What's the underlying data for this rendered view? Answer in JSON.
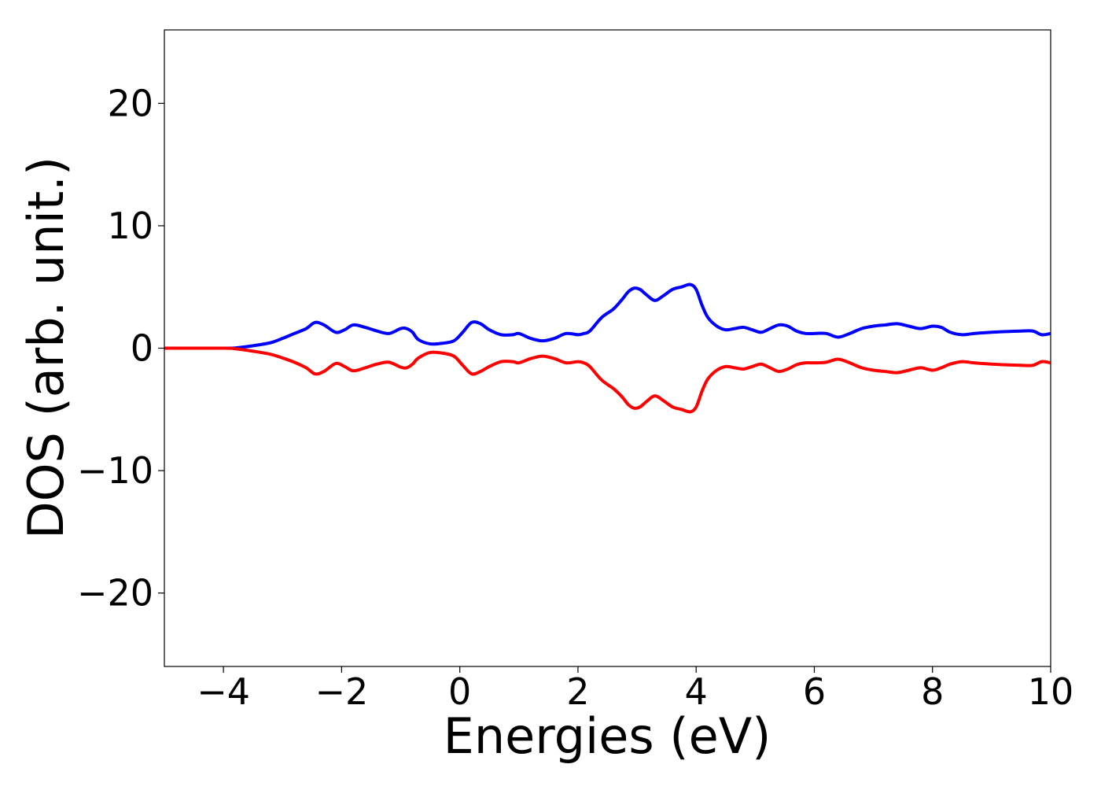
{
  "chart_data": {
    "type": "line",
    "title": "",
    "xlabel": "Energies (eV)",
    "ylabel": "DOS (arb. unit.)",
    "xlim": [
      -5,
      10
    ],
    "ylim": [
      -26,
      26
    ],
    "x_ticks": [
      -4,
      -2,
      0,
      2,
      4,
      6,
      8,
      10
    ],
    "x_tick_labels": [
      "−4",
      "−2",
      "0",
      "2",
      "4",
      "6",
      "8",
      "10"
    ],
    "y_ticks": [
      -20,
      -10,
      0,
      10,
      20
    ],
    "y_tick_labels": [
      "−20",
      "−10",
      "0",
      "10",
      "20"
    ],
    "grid": false,
    "legend": "none",
    "series": [
      {
        "color": "#0000ff",
        "x": [
          -5.0,
          -4.0,
          -3.8,
          -3.5,
          -3.2,
          -3.0,
          -2.8,
          -2.6,
          -2.45,
          -2.3,
          -2.1,
          -1.95,
          -1.8,
          -1.6,
          -1.4,
          -1.2,
          -1.0,
          -0.9,
          -0.8,
          -0.7,
          -0.5,
          -0.3,
          -0.1,
          0.05,
          0.2,
          0.35,
          0.5,
          0.7,
          0.9,
          1.0,
          1.2,
          1.4,
          1.6,
          1.8,
          2.0,
          2.1,
          2.2,
          2.4,
          2.6,
          2.75,
          2.85,
          2.95,
          3.05,
          3.15,
          3.3,
          3.45,
          3.6,
          3.75,
          3.9,
          4.0,
          4.1,
          4.2,
          4.35,
          4.5,
          4.65,
          4.8,
          4.95,
          5.1,
          5.25,
          5.4,
          5.55,
          5.7,
          5.85,
          6.0,
          6.2,
          6.4,
          6.6,
          6.8,
          7.0,
          7.2,
          7.4,
          7.6,
          7.8,
          8.0,
          8.15,
          8.3,
          8.5,
          8.7,
          9.0,
          9.2,
          9.5,
          9.7,
          9.85,
          10.0
        ],
        "y": [
          0.0,
          0.0,
          0.02,
          0.2,
          0.45,
          0.8,
          1.2,
          1.6,
          2.1,
          1.9,
          1.3,
          1.5,
          1.9,
          1.7,
          1.4,
          1.2,
          1.6,
          1.6,
          1.3,
          0.7,
          0.35,
          0.4,
          0.6,
          1.3,
          2.1,
          2.0,
          1.5,
          1.1,
          1.1,
          1.2,
          0.8,
          0.6,
          0.8,
          1.2,
          1.1,
          1.2,
          1.4,
          2.5,
          3.2,
          4.0,
          4.6,
          4.9,
          4.8,
          4.4,
          3.9,
          4.3,
          4.8,
          5.0,
          5.2,
          4.8,
          3.5,
          2.5,
          1.8,
          1.5,
          1.6,
          1.7,
          1.5,
          1.3,
          1.6,
          1.9,
          1.8,
          1.4,
          1.2,
          1.2,
          1.2,
          0.9,
          1.2,
          1.6,
          1.8,
          1.9,
          2.0,
          1.8,
          1.6,
          1.8,
          1.7,
          1.3,
          1.1,
          1.2,
          1.3,
          1.35,
          1.4,
          1.4,
          1.1,
          1.2
        ]
      },
      {
        "color": "#ff0000",
        "x": [
          -5.0,
          -4.0,
          -3.8,
          -3.5,
          -3.2,
          -3.0,
          -2.8,
          -2.6,
          -2.45,
          -2.3,
          -2.1,
          -1.95,
          -1.8,
          -1.6,
          -1.4,
          -1.2,
          -1.0,
          -0.9,
          -0.8,
          -0.7,
          -0.5,
          -0.3,
          -0.1,
          0.05,
          0.2,
          0.35,
          0.5,
          0.7,
          0.9,
          1.0,
          1.2,
          1.4,
          1.6,
          1.8,
          2.0,
          2.1,
          2.2,
          2.4,
          2.6,
          2.75,
          2.85,
          2.95,
          3.05,
          3.15,
          3.3,
          3.45,
          3.6,
          3.75,
          3.9,
          4.0,
          4.1,
          4.2,
          4.35,
          4.5,
          4.65,
          4.8,
          4.95,
          5.1,
          5.25,
          5.4,
          5.55,
          5.7,
          5.85,
          6.0,
          6.2,
          6.4,
          6.6,
          6.8,
          7.0,
          7.2,
          7.4,
          7.6,
          7.8,
          8.0,
          8.15,
          8.3,
          8.5,
          8.7,
          9.0,
          9.2,
          9.5,
          9.7,
          9.85,
          10.0
        ],
        "y": [
          0.0,
          0.0,
          -0.05,
          -0.25,
          -0.5,
          -0.8,
          -1.15,
          -1.6,
          -2.1,
          -1.9,
          -1.25,
          -1.5,
          -1.85,
          -1.6,
          -1.3,
          -1.15,
          -1.55,
          -1.6,
          -1.3,
          -0.8,
          -0.35,
          -0.4,
          -0.65,
          -1.4,
          -2.1,
          -1.9,
          -1.5,
          -1.1,
          -1.1,
          -1.2,
          -0.85,
          -0.65,
          -0.85,
          -1.2,
          -1.1,
          -1.2,
          -1.5,
          -2.6,
          -3.3,
          -4.0,
          -4.6,
          -4.9,
          -4.8,
          -4.4,
          -3.9,
          -4.3,
          -4.8,
          -5.0,
          -5.2,
          -4.8,
          -3.5,
          -2.5,
          -1.8,
          -1.5,
          -1.6,
          -1.7,
          -1.5,
          -1.3,
          -1.6,
          -1.9,
          -1.7,
          -1.35,
          -1.2,
          -1.2,
          -1.15,
          -0.9,
          -1.2,
          -1.6,
          -1.8,
          -1.9,
          -2.0,
          -1.8,
          -1.6,
          -1.8,
          -1.6,
          -1.3,
          -1.1,
          -1.2,
          -1.3,
          -1.35,
          -1.4,
          -1.4,
          -1.1,
          -1.2
        ]
      }
    ]
  }
}
